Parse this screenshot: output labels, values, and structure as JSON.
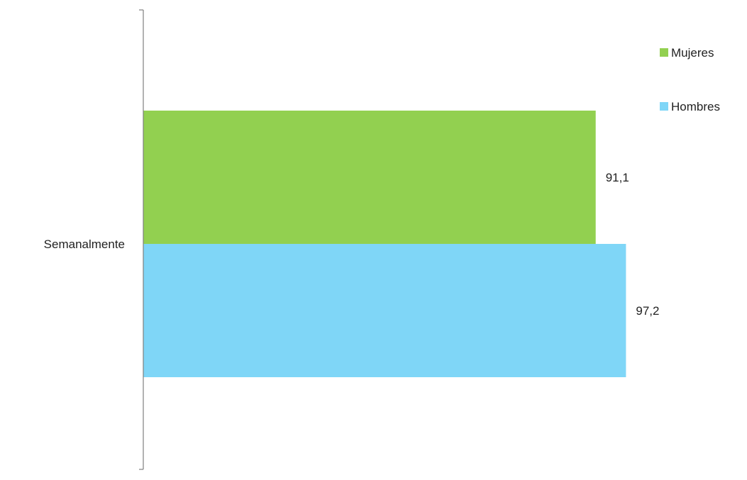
{
  "chart_data": {
    "type": "bar",
    "orientation": "horizontal",
    "categories": [
      "Semanalmente"
    ],
    "series": [
      {
        "name": "Mujeres",
        "values": [
          91.1
        ],
        "labels": [
          "91,1"
        ],
        "color": "#92d050"
      },
      {
        "name": "Hombres",
        "values": [
          97.2
        ],
        "labels": [
          "97,2"
        ],
        "color": "#7fd6f7"
      }
    ],
    "xlim": [
      0,
      100
    ],
    "grid": false,
    "legend": "top-right"
  }
}
